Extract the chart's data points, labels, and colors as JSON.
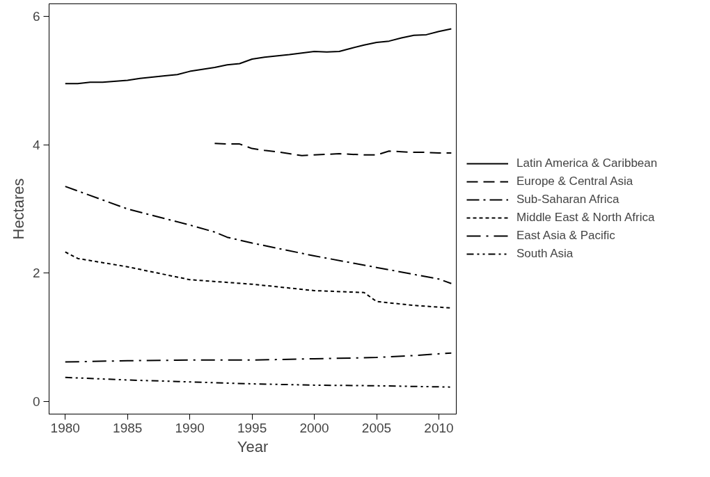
{
  "chart_data": {
    "type": "line",
    "xlabel": "Year",
    "ylabel": "Hectares",
    "xlim": [
      1978.7,
      2011.4
    ],
    "ylim": [
      -0.19,
      6.19
    ],
    "xticks": [
      1980,
      1985,
      1990,
      1995,
      2000,
      2005,
      2010
    ],
    "yticks": [
      0,
      2,
      4,
      6
    ],
    "grid": false,
    "legend": "right",
    "marker": "none",
    "series": [
      {
        "name": "Latin America & Caribbean",
        "color": "#000000",
        "line_style": "solid",
        "x": [
          1980,
          1981,
          1982,
          1983,
          1985,
          1986,
          1988,
          1989,
          1990,
          1991,
          1992,
          1993,
          1994,
          1995,
          1996,
          1998,
          2000,
          2001,
          2002,
          2003,
          2004,
          2005,
          2006,
          2007,
          2008,
          2009,
          2010,
          2011
        ],
        "values": [
          4.95,
          4.95,
          4.97,
          4.97,
          5.0,
          5.03,
          5.07,
          5.09,
          5.14,
          5.17,
          5.2,
          5.24,
          5.26,
          5.33,
          5.36,
          5.4,
          5.45,
          5.44,
          5.45,
          5.5,
          5.55,
          5.59,
          5.61,
          5.66,
          5.7,
          5.71,
          5.76,
          5.8
        ]
      },
      {
        "name": "Europe & Central Asia",
        "color": "#000000",
        "line_style": "dashed",
        "x": [
          1992,
          1993,
          1994,
          1995,
          1996,
          1997,
          1998,
          1999,
          2000,
          2001,
          2002,
          2003,
          2004,
          2005,
          2006,
          2007,
          2008,
          2009,
          2010,
          2011
        ],
        "values": [
          4.02,
          4.01,
          4.01,
          3.94,
          3.91,
          3.89,
          3.86,
          3.83,
          3.84,
          3.85,
          3.86,
          3.85,
          3.84,
          3.84,
          3.9,
          3.89,
          3.88,
          3.88,
          3.87,
          3.87
        ]
      },
      {
        "name": "Sub-Saharan Africa",
        "color": "#000000",
        "line_style": "dashdot",
        "x": [
          1980,
          1985,
          1990,
          1992,
          1993,
          1995,
          2000,
          2005,
          2010,
          2011
        ],
        "values": [
          3.35,
          3.0,
          2.75,
          2.64,
          2.56,
          2.47,
          2.27,
          2.09,
          1.91,
          1.84
        ]
      },
      {
        "name": "Middle East & North Africa",
        "color": "#000000",
        "line_style": "dotted",
        "x": [
          1980,
          1981,
          1985,
          1990,
          1995,
          2000,
          2004,
          2005,
          2008,
          2011
        ],
        "values": [
          2.33,
          2.23,
          2.1,
          1.9,
          1.83,
          1.73,
          1.7,
          1.56,
          1.5,
          1.46
        ]
      },
      {
        "name": "East Asia & Pacific",
        "color": "#000000",
        "line_style": "longdashdot",
        "x": [
          1980,
          1985,
          1990,
          1995,
          2000,
          2005,
          2008,
          2011
        ],
        "values": [
          0.62,
          0.64,
          0.65,
          0.65,
          0.67,
          0.69,
          0.72,
          0.76
        ]
      },
      {
        "name": "South Asia",
        "color": "#000000",
        "line_style": "dashdotdot",
        "x": [
          1980,
          1985,
          1990,
          1995,
          2000,
          2005,
          2011
        ],
        "values": [
          0.38,
          0.34,
          0.31,
          0.28,
          0.26,
          0.25,
          0.23
        ]
      }
    ]
  }
}
